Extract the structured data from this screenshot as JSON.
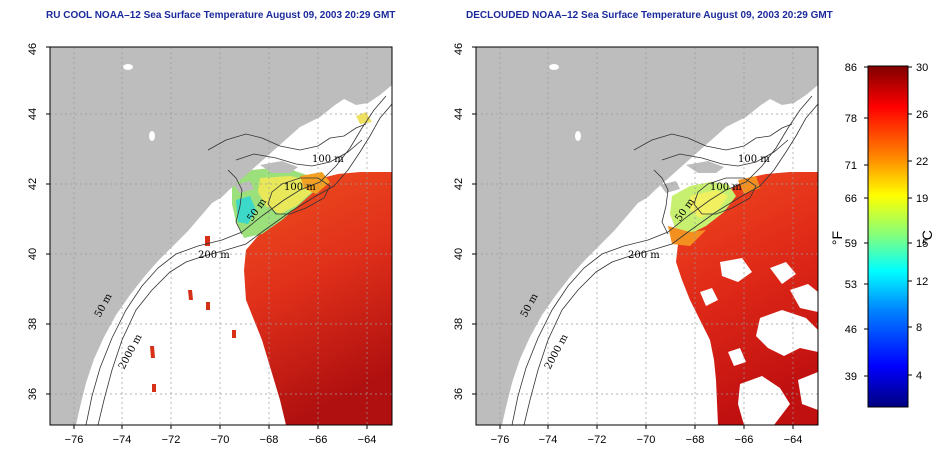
{
  "panels": [
    {
      "id": "left",
      "title": "RU COOL NOAA–12 Sea Surface Temperature August 09, 2003 20:29 GMT",
      "x_ticks": [
        "−76",
        "−74",
        "−72",
        "−70",
        "−68",
        "−66",
        "−64"
      ],
      "y_ticks": [
        "36",
        "38",
        "40",
        "42",
        "44",
        "46"
      ],
      "contour_labels": [
        "100 m",
        "100 m",
        "50 m",
        "200 m",
        "50 m",
        "2000 m"
      ]
    },
    {
      "id": "right",
      "title": "DECLOUDED NOAA–12 Sea Surface Temperature August 09, 2003 20:29 GMT",
      "x_ticks": [
        "−76",
        "−74",
        "−72",
        "−70",
        "−68",
        "−66",
        "−64"
      ],
      "y_ticks": [
        "36",
        "38",
        "40",
        "42",
        "44",
        "46"
      ],
      "contour_labels": [
        "100 m",
        "100 m",
        "50 m",
        "200 m",
        "50 m",
        "2000 m"
      ]
    }
  ],
  "colorbar": {
    "fahrenheit_label": "°F",
    "celsius_label": "°C",
    "fahrenheit_ticks": [
      "86",
      "78",
      "71",
      "66",
      "59",
      "53",
      "46",
      "39"
    ],
    "celsius_ticks": [
      "30",
      "26",
      "22",
      "19",
      "15",
      "12",
      "8",
      "4"
    ],
    "colors": [
      "#00007f",
      "#0000ff",
      "#0080ff",
      "#00ffff",
      "#80ff80",
      "#ffff00",
      "#ff8000",
      "#ff0000",
      "#7f0000"
    ]
  },
  "colors": {
    "land": "#bdbdbd",
    "ocean_nodata": "#ffffff",
    "title": "#1b2a9c",
    "warm_water": "#e8341c",
    "deep_warm": "#c81414"
  }
}
